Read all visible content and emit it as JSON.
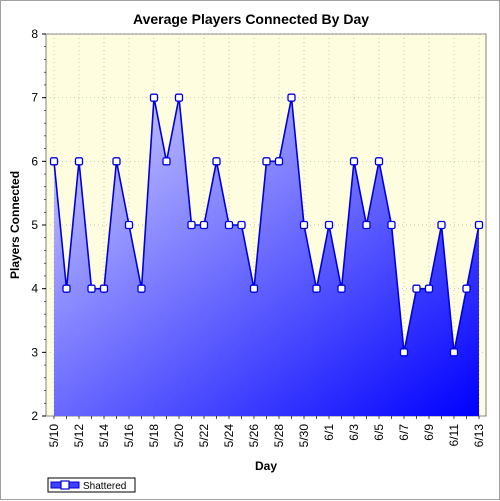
{
  "chart_data": {
    "type": "area",
    "title": "Average Players Connected By Day",
    "xlabel": "Day",
    "ylabel": "Players Connected",
    "ylim": [
      2,
      8
    ],
    "yticks": [
      "2",
      "3",
      "4",
      "5",
      "6",
      "7",
      "8"
    ],
    "grid": true,
    "legend_position": "bottom-left",
    "colors": {
      "plot_background": "#fffde0",
      "line": "#0000dd",
      "fill_light": "#d2d2ff",
      "fill_dark": "#0000ff",
      "grid": "#b0b0b0"
    },
    "x": [
      "5/10",
      "5/11",
      "5/12",
      "5/13",
      "5/14",
      "5/15",
      "5/16",
      "5/17",
      "5/18",
      "5/19",
      "5/20",
      "5/21",
      "5/22",
      "5/23",
      "5/24",
      "5/25",
      "5/26",
      "5/27",
      "5/28",
      "5/29",
      "5/30",
      "5/31",
      "6/1",
      "6/2",
      "6/3",
      "6/4",
      "6/5",
      "6/6",
      "6/7",
      "6/8",
      "6/9",
      "6/10",
      "6/11",
      "6/12",
      "6/13"
    ],
    "x_tick_labels": [
      "5/10",
      "5/12",
      "5/14",
      "5/16",
      "5/18",
      "5/20",
      "5/22",
      "5/24",
      "5/26",
      "5/28",
      "5/30",
      "6/1",
      "6/3",
      "6/5",
      "6/7",
      "6/9",
      "6/11",
      "6/13"
    ],
    "series": [
      {
        "name": "Shattered",
        "values": [
          6,
          4,
          6,
          4,
          4,
          6,
          5,
          4,
          7,
          6,
          7,
          5,
          5,
          6,
          5,
          5,
          4,
          6,
          6,
          7,
          5,
          4,
          5,
          4,
          6,
          5,
          6,
          5,
          3,
          4,
          4,
          5,
          3,
          4,
          5
        ]
      }
    ]
  }
}
